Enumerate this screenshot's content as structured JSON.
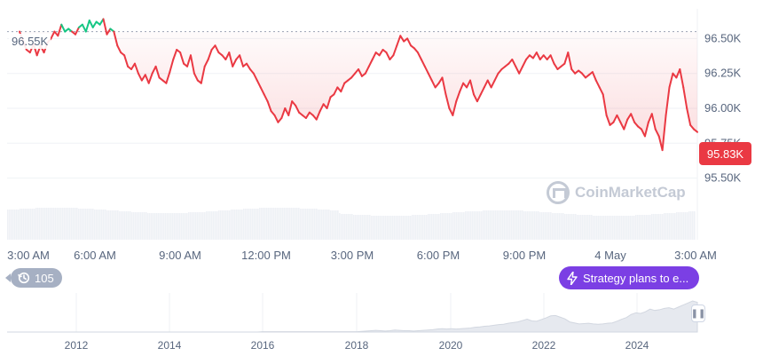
{
  "chart_data": [
    {
      "type": "area",
      "title": "",
      "xlabel": "",
      "ylabel": "",
      "x_ticks": [
        "3:00 AM",
        "6:00 AM",
        "9:00 AM",
        "12:00 PM",
        "3:00 PM",
        "6:00 PM",
        "9:00 PM",
        "4 May",
        "3:00 AM"
      ],
      "y_ticks": [
        "95.50K",
        "95.75K",
        "96.00K",
        "96.25K",
        "96.50K"
      ],
      "ylim": [
        95.3,
        96.7
      ],
      "reference_line": {
        "label": "96.55K",
        "value": 96.55
      },
      "current_price": "95.83K",
      "colors": {
        "down": "#ea3943",
        "up": "#16c784",
        "fill": "#ea3943"
      },
      "series": [
        {
          "values": [
            96.55,
            96.48,
            96.42,
            96.4,
            96.46,
            96.38,
            96.45,
            96.4,
            96.47,
            96.5,
            96.55,
            96.52,
            96.6,
            96.55,
            96.57,
            96.55,
            96.53,
            96.58,
            96.6,
            96.55,
            96.63,
            96.58,
            96.62,
            96.6,
            96.64,
            96.53,
            96.57,
            96.55,
            96.45,
            96.4,
            96.38,
            96.3,
            96.28,
            96.32,
            96.25,
            96.2,
            96.24,
            96.18,
            96.25,
            96.3,
            96.22,
            96.2,
            96.18,
            96.26,
            96.35,
            96.42,
            96.4,
            96.32,
            96.3,
            96.38,
            96.25,
            96.2,
            96.18,
            96.3,
            96.35,
            96.42,
            96.45,
            96.4,
            96.38,
            96.35,
            96.4,
            96.3,
            96.35,
            96.38,
            96.3,
            96.32,
            96.28,
            96.25,
            96.2,
            96.15,
            96.1,
            96.05,
            95.98,
            95.95,
            95.9,
            95.93,
            96.0,
            95.95,
            96.05,
            96.02,
            95.97,
            95.95,
            95.93,
            95.97,
            95.95,
            95.92,
            95.98,
            96.03,
            96.0,
            96.08,
            96.1,
            96.15,
            96.12,
            96.18,
            96.2,
            96.22,
            96.25,
            96.28,
            96.23,
            96.25,
            96.3,
            96.35,
            96.4,
            96.38,
            96.42,
            96.4,
            96.35,
            96.38,
            96.45,
            96.52,
            96.48,
            96.5,
            96.45,
            96.43,
            96.4,
            96.35,
            96.3,
            96.25,
            96.2,
            96.15,
            96.18,
            96.22,
            96.1,
            96.0,
            95.95,
            96.05,
            96.12,
            96.18,
            96.15,
            96.2,
            96.1,
            96.05,
            96.1,
            96.15,
            96.2,
            96.15,
            96.2,
            96.25,
            96.28,
            96.3,
            96.32,
            96.35,
            96.3,
            96.25,
            96.3,
            96.35,
            96.38,
            96.36,
            96.4,
            96.35,
            96.38,
            96.35,
            96.38,
            96.32,
            96.28,
            96.3,
            96.32,
            96.4,
            96.28,
            96.25,
            96.27,
            96.25,
            96.22,
            96.24,
            96.26,
            96.2,
            96.15,
            96.1,
            95.95,
            95.88,
            95.9,
            95.95,
            95.9,
            95.85,
            95.92,
            95.96,
            95.9,
            95.87,
            95.85,
            95.8,
            95.9,
            95.96,
            95.85,
            95.8,
            95.7,
            95.95,
            96.15,
            96.25,
            96.22,
            96.28,
            96.15,
            96.0,
            95.88,
            95.85,
            95.83
          ]
        }
      ]
    },
    {
      "type": "area",
      "xlabel": "",
      "ylabel": "",
      "x_ticks": [
        "2012",
        "2014",
        "2016",
        "2018",
        "2020",
        "2022",
        "2024"
      ],
      "series": [
        {
          "values": [
            0,
            0,
            0,
            0,
            0,
            0,
            0,
            0,
            0,
            0,
            0,
            0,
            0,
            0,
            0,
            0,
            0,
            0,
            0,
            0,
            0,
            0,
            0,
            0,
            0,
            0,
            0,
            0,
            0,
            0,
            0,
            0,
            0,
            0,
            0,
            0,
            0,
            0,
            0,
            0,
            0,
            0,
            0,
            0,
            0,
            0,
            0,
            0,
            0,
            0,
            0,
            0,
            0,
            0,
            0.01,
            0.01,
            0.01,
            0.01,
            0.01,
            0.01,
            0.01,
            0.01,
            0.01,
            0.01,
            0.01,
            0.01,
            0.01,
            0.01,
            0.01,
            0.01,
            0.01,
            0.01,
            0.01,
            0.01,
            0.01,
            0.02,
            0.03,
            0.04,
            0.05,
            0.04,
            0.03,
            0.04,
            0.06,
            0.05,
            0.04,
            0.04,
            0.03,
            0.04,
            0.05,
            0.06,
            0.07,
            0.09,
            0.1,
            0.09,
            0.1,
            0.09,
            0.1,
            0.11,
            0.12,
            0.14,
            0.15,
            0.17,
            0.18,
            0.2,
            0.22,
            0.23,
            0.26,
            0.28,
            0.3,
            0.34,
            0.38,
            0.33,
            0.32,
            0.37,
            0.42,
            0.48,
            0.49,
            0.44,
            0.39,
            0.3,
            0.27,
            0.24,
            0.25,
            0.26,
            0.24,
            0.23,
            0.24,
            0.26,
            0.27,
            0.32,
            0.38,
            0.43,
            0.52,
            0.57,
            0.55,
            0.6,
            0.68,
            0.64,
            0.66,
            0.7,
            0.72,
            0.68,
            0.74,
            0.8,
            0.86,
            0.92,
            0.88
          ]
        }
      ]
    }
  ],
  "news_label": "Strategy plans to e...",
  "history_count": "105",
  "watermark": "CoinMarketCap",
  "icons": {
    "history": "history-clock-icon",
    "news": "lightning-icon",
    "logo": "coinmarketcap-logo-icon"
  }
}
